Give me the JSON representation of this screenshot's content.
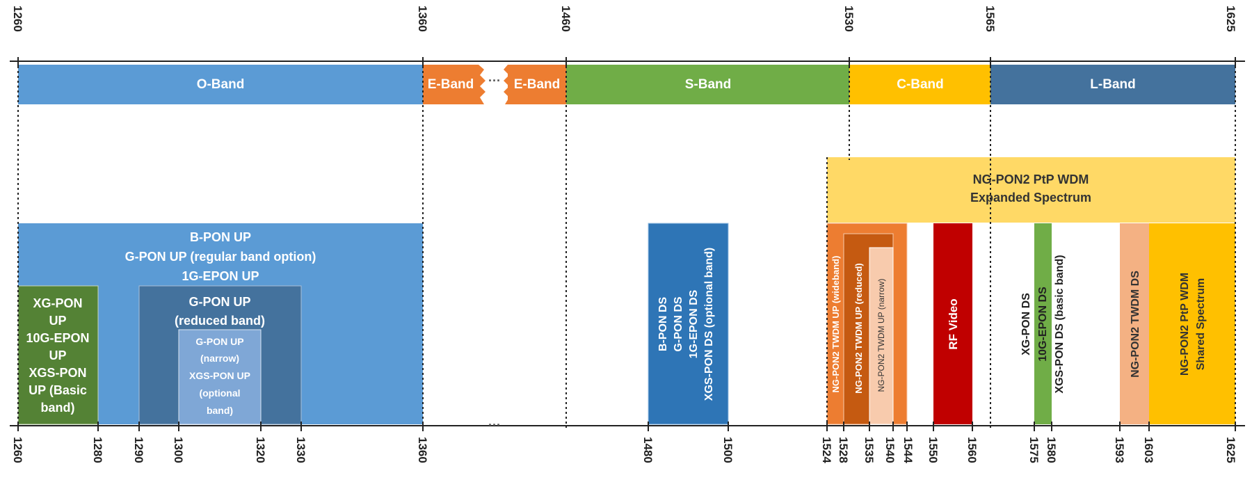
{
  "top_ticks": [
    "1260",
    "1360",
    "1460",
    "1530",
    "1565",
    "1625"
  ],
  "bottom_ticks": [
    "1260",
    "1280",
    "1290",
    "1300",
    "1320",
    "1330",
    "1360",
    "1480",
    "1500",
    "1524",
    "1528",
    "1535",
    "1540",
    "1544",
    "1550",
    "1560",
    "1575",
    "1580",
    "1593",
    "1603",
    "1625"
  ],
  "bands": [
    {
      "label": "O-Band",
      "color": "#5b9bd5"
    },
    {
      "label": "E-Band",
      "color": "#ed7d31"
    },
    {
      "label": "E-Band",
      "color": "#ed7d31"
    },
    {
      "label": "S-Band",
      "color": "#70ad47"
    },
    {
      "label": "C-Band",
      "color": "#ffc000"
    },
    {
      "label": "L-Band",
      "color": "#44729d"
    }
  ],
  "allocations": {
    "ngpon2_expanded": {
      "lines": [
        "NG-PON2 PtP WDM",
        "Expanded Spectrum"
      ],
      "color": "#ffd966"
    },
    "bpon_up": {
      "lines": [
        "B-PON UP",
        "G-PON UP (regular band option)",
        "1G-EPON UP"
      ],
      "color": "#5b9bd5"
    },
    "xgpon_up": {
      "lines": [
        "XG-PON",
        "UP",
        "10G-EPON",
        "UP",
        "XGS-PON",
        "UP (Basic",
        "band)"
      ],
      "color": "#548235"
    },
    "gpon_reduced": {
      "lines": [
        "G-PON UP",
        "(reduced band)"
      ],
      "color": "#44729d"
    },
    "gpon_narrow": {
      "lines": [
        "G-PON UP",
        "(narrow)",
        "XGS-PON UP",
        "(optional",
        "band)"
      ],
      "color": "#7fa7d6"
    },
    "bpon_ds": {
      "lines": [
        "B-PON DS",
        "G-PON DS",
        "1G-EPON DS",
        "XGS-PON DS (optional band)"
      ],
      "color": "#2e75b6"
    },
    "twdm_wideband": {
      "label": "NG-PON2 TWDM UP (wideband)",
      "color": "#ed7d31"
    },
    "twdm_reduced": {
      "label": "NG-PON2 TWDM UP (reduced)",
      "color": "#c55a11"
    },
    "twdm_narrow": {
      "label": "NG-PON2 TWDM UP (narrow)",
      "color": "#f8cbad"
    },
    "rf_video": {
      "label": "RF Video",
      "color": "#c00000"
    },
    "xgpon_ds": {
      "lines": [
        "XG-PON DS",
        "10G-EPON DS",
        "XGS-PON DS (basic band)"
      ],
      "color": "#70ad47"
    },
    "twdm_ds": {
      "label": "NG-PON2 TWDM DS",
      "color": "#f4b183"
    },
    "ngpon2_shared": {
      "lines": [
        "NG-PON2 PtP WDM",
        "Shared Spectrum"
      ],
      "color": "#ffc000"
    }
  }
}
